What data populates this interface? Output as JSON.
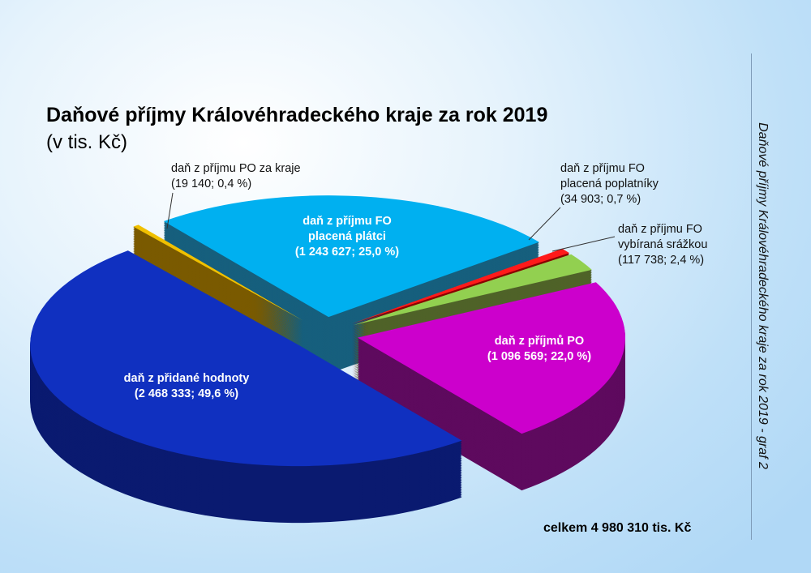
{
  "chart_data": {
    "type": "pie",
    "title": "Daňové příjmy Královéhradeckého kraje za rok 2019",
    "subtitle": "(v tis. Kč)",
    "unit": "tis. Kč",
    "style": "3d-exploded",
    "slices": [
      {
        "name": "daň z příjmu FO placená plátci",
        "value": 1243627,
        "percent": 25.0,
        "label_lines": [
          "daň z příjmu FO",
          "placená plátci",
          "(1 243 627; 25,0 %)"
        ],
        "color": "#00b0f0",
        "side_color": "#165f7d"
      },
      {
        "name": "daň z příjmu FO placená poplatníky",
        "value": 34903,
        "percent": 0.7,
        "label_lines": [
          "daň z příjmu FO",
          "placená poplatníky",
          "(34 903; 0,7 %)"
        ],
        "color": "#ff1a1a",
        "side_color": "#8a0000"
      },
      {
        "name": "daň z příjmu FO vybíraná srážkou",
        "value": 117738,
        "percent": 2.4,
        "label_lines": [
          "daň z příjmu FO",
          "vybíraná srážkou",
          "(117 738; 2,4 %)"
        ],
        "color": "#92d050",
        "side_color": "#4f6228"
      },
      {
        "name": "daň z příjmů PO",
        "value": 1096569,
        "percent": 22.0,
        "label_lines": [
          "daň z příjmů PO",
          "(1 096 569; 22,0 %)"
        ],
        "color": "#cc00cc",
        "side_color": "#5e0a5e"
      },
      {
        "name": "daň z přidané hodnoty",
        "value": 2468333,
        "percent": 49.6,
        "label_lines": [
          "daň z přidané hodnoty",
          "(2 468 333; 49,6 %)"
        ],
        "color": "#1030c0",
        "side_color": "#0a1a70"
      },
      {
        "name": "daň z příjmu PO za kraje",
        "value": 19140,
        "percent": 0.4,
        "label_lines": [
          "daň z příjmu PO za kraje",
          "(19 140; 0,4 %)"
        ],
        "color": "#f0c000",
        "side_color": "#7a5a00"
      }
    ],
    "total_label": "celkem 4 980 310 tis. Kč",
    "side_caption": "Daňové příjmy Královéhradeckého kraje za rok 2019 - graf 2",
    "legend": "none"
  }
}
